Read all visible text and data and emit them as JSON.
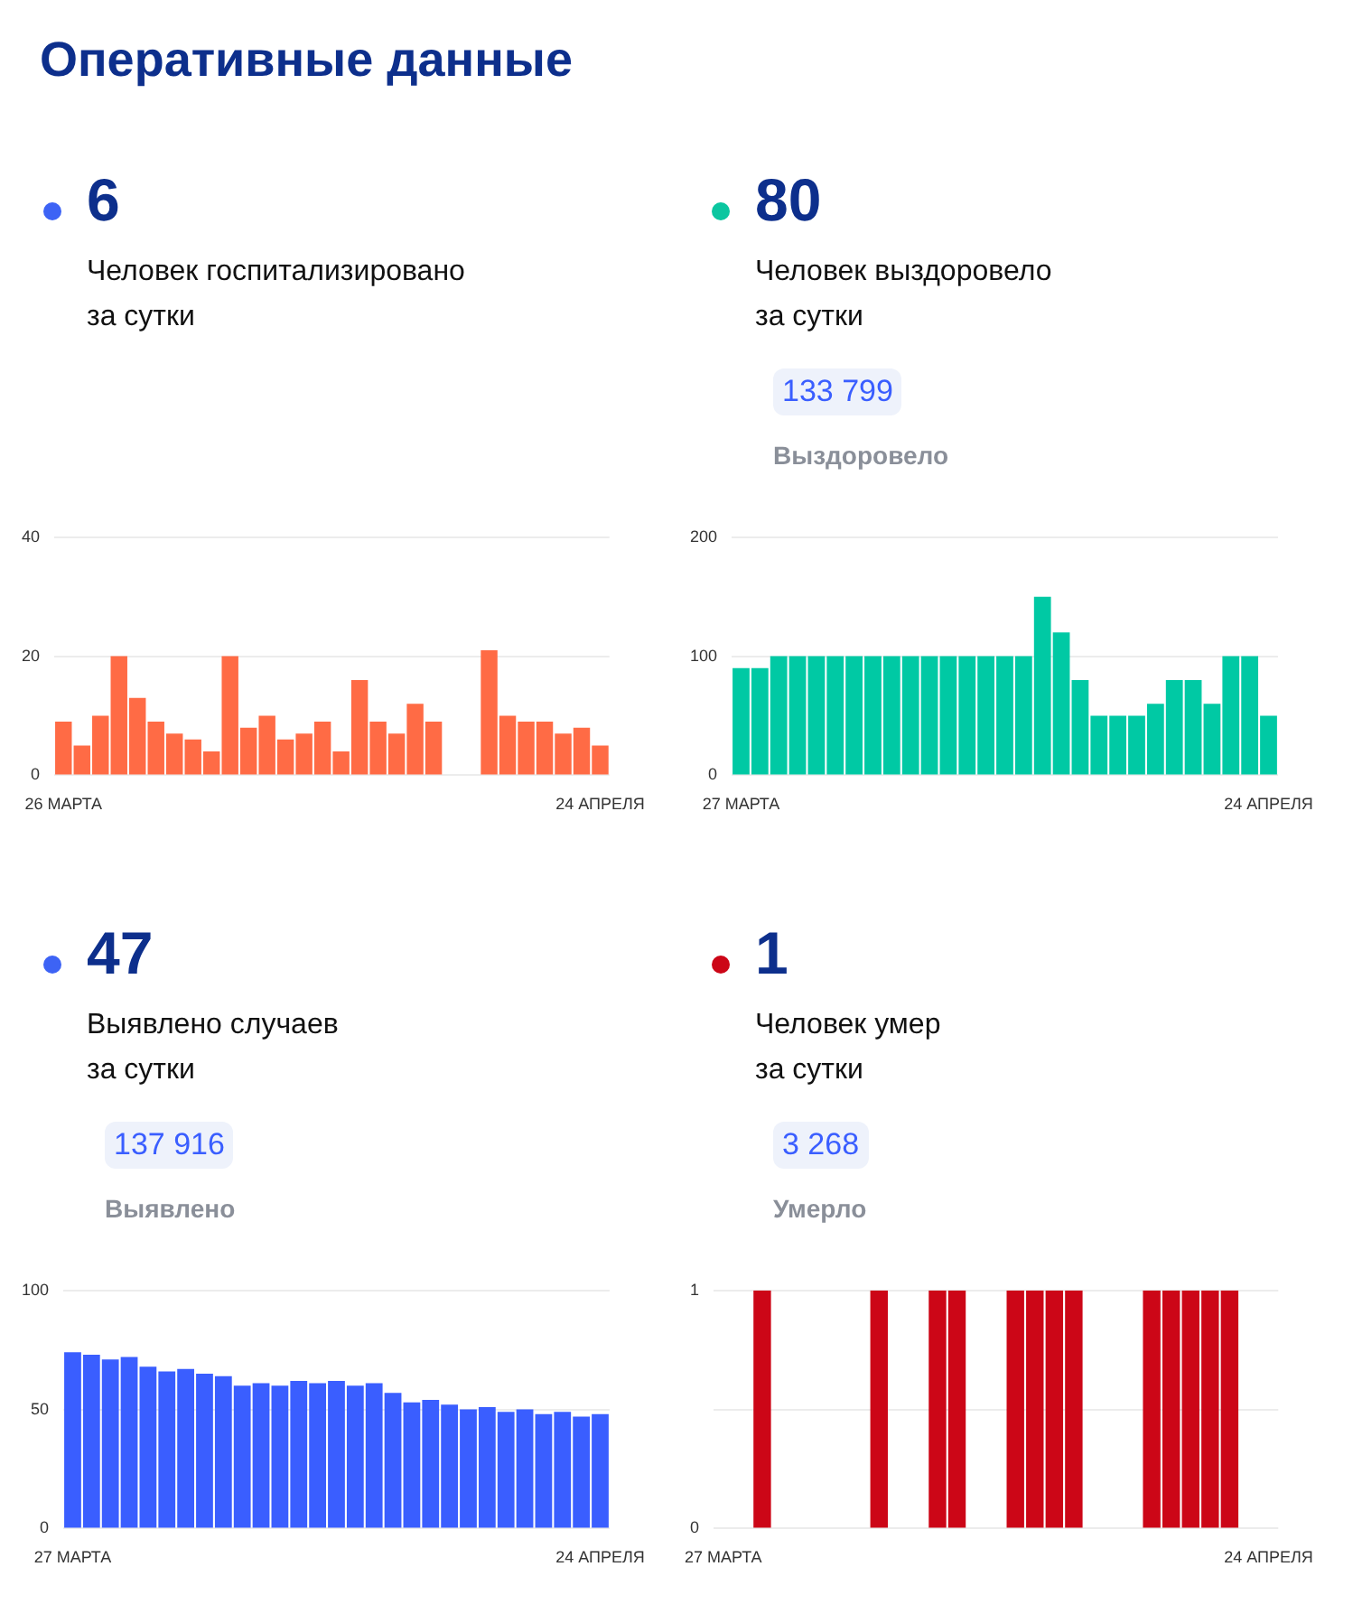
{
  "chart_data": [
    {
      "type": "bar",
      "title": "6",
      "subtitle": "Человек госпитализировано\nза сутки",
      "annotations": [
        "Оперативные данные"
      ],
      "categories": [
        "26 МАРТА",
        null,
        null,
        null,
        null,
        null,
        null,
        null,
        null,
        null,
        null,
        null,
        null,
        null,
        null,
        null,
        null,
        null,
        null,
        null,
        null,
        null,
        null,
        null,
        null,
        null,
        null,
        null,
        null,
        "24 АПРЕЛЯ"
      ],
      "values": [
        9,
        5,
        10,
        20,
        13,
        9,
        7,
        6,
        4,
        20,
        8,
        10,
        6,
        7,
        9,
        4,
        16,
        9,
        7,
        12,
        9,
        null,
        null,
        21,
        10,
        9,
        9,
        7,
        8,
        5
      ],
      "color": "#ff6b45",
      "ylim": [
        0,
        40
      ],
      "yticks": [
        0,
        20,
        40
      ],
      "grid": "y"
    },
    {
      "type": "bar",
      "title": "80",
      "subtitle": "Человек выздоровело\nза сутки",
      "annotations": [
        "133 799",
        "Выздоровело"
      ],
      "categories": [
        "27 МАРТА",
        null,
        null,
        null,
        null,
        null,
        null,
        null,
        null,
        null,
        null,
        null,
        null,
        null,
        null,
        null,
        null,
        null,
        null,
        null,
        null,
        null,
        null,
        null,
        null,
        null,
        null,
        null,
        "24 АПРЕЛЯ"
      ],
      "values": [
        90,
        90,
        100,
        100,
        100,
        100,
        100,
        100,
        100,
        100,
        100,
        100,
        100,
        100,
        100,
        100,
        150,
        120,
        80,
        50,
        50,
        50,
        60,
        80,
        80,
        60,
        100,
        100,
        50
      ],
      "color": "#00c9a4",
      "ylim": [
        0,
        200
      ],
      "yticks": [
        0,
        100,
        200
      ],
      "grid": "y"
    },
    {
      "type": "bar",
      "title": "47",
      "subtitle": "Выявлено случаев\nза сутки",
      "annotations": [
        "137 916",
        "Выявлено"
      ],
      "categories": [
        "27 МАРТА",
        null,
        null,
        null,
        null,
        null,
        null,
        null,
        null,
        null,
        null,
        null,
        null,
        null,
        null,
        null,
        null,
        null,
        null,
        null,
        null,
        null,
        null,
        null,
        null,
        null,
        null,
        null,
        "24 АПРЕЛЯ"
      ],
      "values": [
        74,
        73,
        71,
        72,
        68,
        66,
        67,
        65,
        64,
        60,
        61,
        60,
        62,
        61,
        62,
        60,
        61,
        57,
        53,
        54,
        52,
        50,
        51,
        49,
        50,
        48,
        49,
        47,
        48
      ],
      "color": "#3a5eff",
      "ylim": [
        0,
        100
      ],
      "yticks": [
        0,
        50,
        100
      ],
      "grid": "y"
    },
    {
      "type": "bar",
      "title": "1",
      "subtitle": "Человек умер\nза сутки",
      "annotations": [
        "3 268",
        "Умерло"
      ],
      "categories": [
        "27 МАРТА",
        null,
        null,
        null,
        null,
        null,
        null,
        null,
        null,
        null,
        null,
        null,
        null,
        null,
        null,
        null,
        null,
        null,
        null,
        null,
        null,
        null,
        null,
        null,
        null,
        null,
        null,
        null,
        "24 АПРЕЛЯ"
      ],
      "values": [
        0,
        0,
        1,
        0,
        0,
        0,
        0,
        0,
        1,
        0,
        0,
        1,
        1,
        0,
        0,
        1,
        1,
        1,
        1,
        0,
        0,
        0,
        1,
        1,
        1,
        1,
        1,
        0,
        0
      ],
      "color": "#cc0617",
      "ylim": [
        0,
        1
      ],
      "yticks": [
        0,
        {
          "value": 0.5,
          "label": null
        },
        1
      ],
      "grid": "y"
    }
  ]
}
